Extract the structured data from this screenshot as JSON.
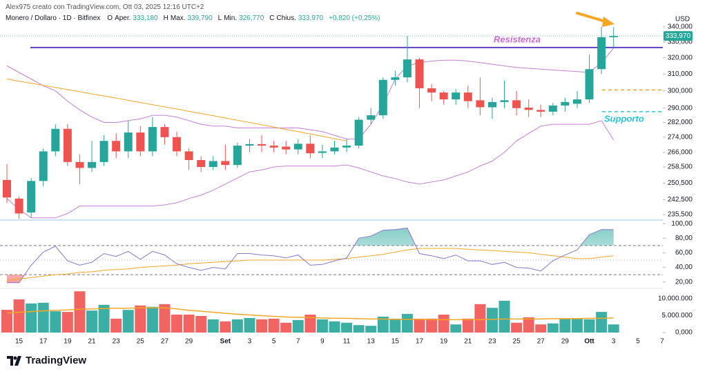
{
  "header": {
    "author": "Alex975 creato con TradingView.com, Ott 03, 2025 12:16 UTC+2",
    "symbol": "Monero / Dollaro · 1D · Bitfinex",
    "ohlc": [
      {
        "key": "O",
        "label": "Aper.",
        "value": "333,180"
      },
      {
        "key": "H",
        "label": "Max.",
        "value": "339,790"
      },
      {
        "key": "L",
        "label": "Min.",
        "value": "326,770"
      },
      {
        "key": "C",
        "label": "Chius.",
        "value": "333,970"
      }
    ],
    "change": "+0,820 (+0,25%)"
  },
  "footer": {
    "logo": "TradingView"
  },
  "chart_data": {
    "type": "candlestick",
    "y_unit": "USD",
    "categories": [
      null,
      "15",
      null,
      "17",
      null,
      "19",
      null,
      "21",
      null,
      "23",
      null,
      "25",
      null,
      "27",
      null,
      "29",
      null,
      null,
      "Set",
      null,
      "3",
      null,
      "5",
      null,
      "7",
      null,
      "9",
      null,
      "11",
      null,
      "13",
      null,
      "15",
      null,
      "17",
      null,
      "19",
      null,
      "21",
      null,
      "23",
      null,
      "25",
      null,
      "27",
      null,
      "29",
      null,
      "Ott",
      null,
      "3",
      null,
      "5",
      null,
      "7"
    ],
    "open": [
      252,
      243,
      236.5,
      251.5,
      266.5,
      278.5,
      261,
      258,
      261,
      272,
      266.5,
      276.5,
      266.5,
      279.5,
      274,
      266.5,
      262,
      258.5,
      261.5,
      259.5,
      269.5,
      270.3,
      269.5,
      269,
      267.5,
      270.5,
      265.7,
      266.5,
      268.5,
      269.5,
      283.5,
      286,
      306.5,
      308,
      319,
      301.5,
      299,
      295,
      299,
      294.5,
      290.5,
      293.5,
      294.5,
      290.3,
      289,
      288,
      291.5,
      292.5,
      295,
      313,
      333.18,
      null,
      null,
      null,
      null
    ],
    "high": [
      260,
      244,
      253,
      268,
      281,
      281,
      265,
      272,
      275,
      276,
      283,
      280,
      285,
      281,
      277,
      268,
      264,
      264,
      270,
      271,
      273,
      275,
      272,
      272,
      273,
      275,
      270,
      272,
      273,
      285,
      290,
      308,
      312,
      334,
      320,
      304,
      300,
      301,
      303,
      308,
      296,
      306,
      300,
      295,
      292,
      293,
      296,
      300,
      322,
      340,
      339.79,
      null,
      null,
      null,
      null
    ],
    "low": [
      241,
      233.5,
      234,
      249,
      264,
      259,
      250,
      256,
      259,
      263,
      263,
      264,
      264,
      270,
      264,
      257,
      256,
      257,
      257,
      258,
      266,
      266,
      266,
      265,
      265,
      263,
      263,
      265,
      266,
      268,
      281,
      284,
      303,
      305,
      290,
      294,
      292,
      292,
      290,
      286,
      284,
      290,
      286,
      285,
      285,
      286,
      288,
      290,
      293,
      310,
      326.77,
      null,
      null,
      null,
      null
    ],
    "close": [
      243.5,
      236,
      251.5,
      266.5,
      278.5,
      261,
      258,
      261,
      272,
      266.5,
      276.5,
      266.5,
      279.5,
      274,
      266.5,
      262,
      258.5,
      261.5,
      259.5,
      269.5,
      270.3,
      269.5,
      268.5,
      267.5,
      270.5,
      265.5,
      266.5,
      268.5,
      269.5,
      283.5,
      286,
      306.5,
      308,
      319,
      301.5,
      299,
      295,
      299,
      294,
      290.5,
      293.5,
      294.5,
      290,
      289,
      288,
      291.5,
      293.5,
      295,
      313,
      333.15,
      333.97,
      null,
      null,
      null,
      null
    ],
    "up_color": "#26a69a",
    "down_color": "#ef5350",
    "log": true,
    "ylim": [
      233.3,
      344.1
    ],
    "yticks": [
      {
        "value": 235.5,
        "label": "235,500"
      },
      {
        "value": 242.5,
        "label": "242,500"
      },
      {
        "value": 250.5,
        "label": "250,500"
      },
      {
        "value": 258.5,
        "label": "258,500"
      },
      {
        "value": 266,
        "label": "266,000"
      },
      {
        "value": 274,
        "label": "274,000"
      },
      {
        "value": 282,
        "label": "282,000"
      },
      {
        "value": 290,
        "label": "290,000"
      },
      {
        "value": 300,
        "label": "300,000"
      },
      {
        "value": 310,
        "label": "310,000"
      },
      {
        "value": 320,
        "label": "320,000"
      },
      {
        "value": 330,
        "label": "330,000"
      },
      {
        "value": 340,
        "label": "340,000"
      }
    ],
    "bands": [
      {
        "color": "#c77dd9",
        "values": [
          315,
          311,
          307,
          303,
          300,
          294,
          289,
          285,
          282,
          282,
          283,
          284,
          286,
          286,
          285,
          283,
          281,
          280,
          280,
          279,
          279,
          279,
          279,
          279,
          279,
          278,
          277,
          275,
          273,
          273,
          281,
          292,
          307,
          315,
          317,
          318,
          318.5,
          318.5,
          318,
          317,
          316,
          315,
          314,
          313.5,
          313,
          312.5,
          312,
          311.5,
          311,
          317,
          326,
          null,
          null,
          null,
          null
        ]
      },
      {
        "color": "#c77dd9",
        "values": [
          243,
          238,
          234,
          234,
          234,
          236,
          239.5,
          239.5,
          239.5,
          239.5,
          239.5,
          239.5,
          239.5,
          240,
          241,
          243,
          244.6,
          247,
          250,
          253,
          256,
          257,
          258.5,
          259,
          259,
          259,
          259,
          259,
          259.5,
          258,
          256,
          254,
          252.7,
          251,
          250,
          251,
          252,
          254,
          256,
          259,
          261.5,
          266,
          272,
          276,
          280,
          281,
          281,
          281,
          281,
          283,
          272.5,
          null,
          null,
          null,
          null
        ]
      }
    ],
    "ma": {
      "color": "#f5a623",
      "values": [
        307,
        305.7,
        304.5,
        303.2,
        302,
        300.7,
        299.5,
        298.2,
        297,
        295.7,
        294.5,
        293.2,
        292,
        290.7,
        289.5,
        288.2,
        287,
        285.7,
        284.5,
        283.2,
        282,
        280.7,
        279.5,
        278.2,
        277,
        275.7,
        274.5,
        273.2,
        272,
        null,
        null,
        null,
        null,
        null,
        null,
        null,
        null,
        null,
        null,
        null,
        null,
        null,
        null,
        null,
        null,
        null,
        null,
        null,
        null,
        null,
        null,
        null,
        null,
        null,
        null
      ]
    },
    "levels": [
      {
        "value": 326.5,
        "color": "#5b3fc4",
        "text": "Resistenza",
        "text_color": "#c86ad0",
        "dashed": false
      },
      {
        "value": 300.5,
        "color": "#f5a623",
        "dashed": true
      },
      {
        "value": 288,
        "color": "#26c6da",
        "text": "Supporto",
        "text_color": "#26c6da",
        "dashed": true
      }
    ],
    "rsi": {
      "type": "line",
      "color": "#8a75d1",
      "ma_color": "#f5a623",
      "values": [
        19,
        19,
        43,
        61,
        69,
        49,
        43,
        47,
        59,
        55,
        62,
        51,
        62,
        57,
        45,
        40,
        36,
        40,
        38,
        59,
        59,
        57,
        56,
        53,
        57,
        43,
        44,
        49,
        53,
        80,
        83,
        91,
        92,
        94,
        59,
        56,
        52,
        57,
        49,
        49,
        44,
        47,
        40,
        39,
        35,
        49,
        57,
        64,
        85,
        92,
        92,
        null,
        null,
        null,
        null
      ],
      "ma_values": [
        22,
        24,
        26,
        28,
        30,
        31,
        33,
        34,
        36,
        37,
        38,
        40,
        41,
        42,
        43,
        45,
        46,
        47,
        48,
        49,
        50,
        50,
        50,
        50,
        50,
        50,
        50,
        51,
        52,
        54,
        56,
        58,
        61,
        64,
        66,
        66,
        66,
        66,
        65,
        64,
        63,
        62,
        61,
        60,
        58,
        56,
        54,
        52,
        52,
        54,
        56,
        null,
        null,
        null,
        null
      ],
      "ylim": [
        14,
        104
      ],
      "bands": [
        70,
        30
      ],
      "mid": 50,
      "yticks": [
        {
          "value": 20,
          "label": "20,00"
        },
        {
          "value": 40,
          "label": "40,00"
        },
        {
          "value": 60,
          "label": "60,00"
        },
        {
          "value": 80,
          "label": "80,00"
        },
        {
          "value": 100,
          "label": "100,00"
        }
      ]
    },
    "volume": {
      "type": "bar",
      "ma_color": "#f5a623",
      "values": [
        6700000,
        9800000,
        8600000,
        8800000,
        6300000,
        6100000,
        12200000,
        6500000,
        8200000,
        4100000,
        6700000,
        8000000,
        7600000,
        8400000,
        5300000,
        5300000,
        4900000,
        3900000,
        3300000,
        3900000,
        4300000,
        3900000,
        4100000,
        2900000,
        3700000,
        5300000,
        3900000,
        3300000,
        2900000,
        2200000,
        2000000,
        4700000,
        4100000,
        5500000,
        4100000,
        4100000,
        5300000,
        2400000,
        4100000,
        8400000,
        7300000,
        9400000,
        2900000,
        4500000,
        2400000,
        2700000,
        4100000,
        4100000,
        3900000,
        6100000,
        2400000,
        null,
        null,
        null,
        null
      ],
      "ma_values": [
        5800000,
        6000000,
        6200000,
        6400000,
        6600000,
        6700000,
        6900000,
        7000000,
        7100000,
        7200000,
        7200000,
        7300000,
        7300000,
        7300000,
        7000000,
        6600000,
        6300000,
        6000000,
        5700000,
        5400000,
        5200000,
        5000000,
        4800000,
        4600000,
        4500000,
        4400000,
        4300000,
        4200000,
        4200000,
        4100000,
        4000000,
        4000000,
        3900000,
        3900000,
        3900000,
        3800000,
        3800000,
        3800000,
        3800000,
        3800000,
        3900000,
        4000000,
        4000000,
        4000000,
        4000000,
        4100000,
        4100000,
        4100000,
        4200000,
        4200000,
        4300000,
        null,
        null,
        null,
        null
      ],
      "ylim": [
        0,
        12650000
      ],
      "yticks": [
        {
          "value": 0,
          "label": "0,000"
        },
        {
          "value": 5000000,
          "label": "5.000.000"
        },
        {
          "value": 10000000,
          "label": "10.000.000"
        }
      ]
    }
  }
}
